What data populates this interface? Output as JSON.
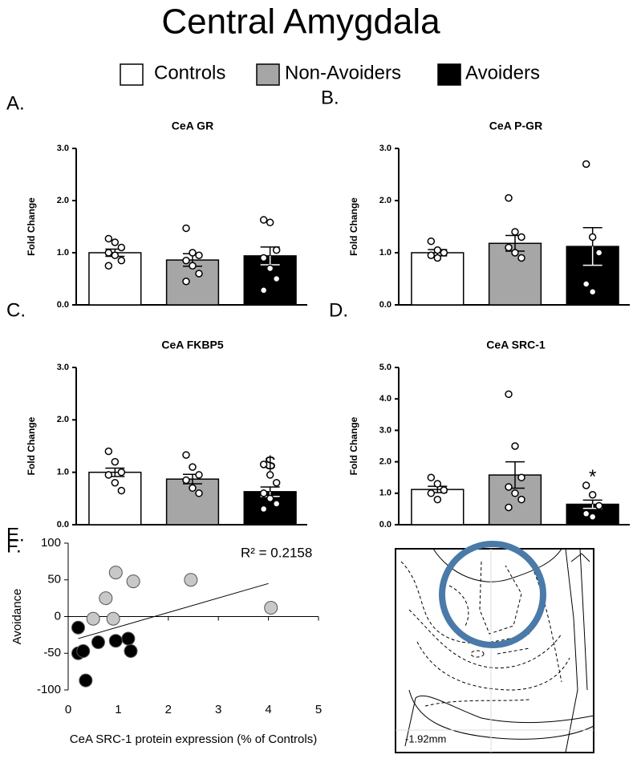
{
  "title": "Central Amygdala",
  "legend": [
    {
      "name": "Controls",
      "color": "#ffffff"
    },
    {
      "name": "Non-Avoiders",
      "color": "#a6a6a6"
    },
    {
      "name": "Avoiders",
      "color": "#000000"
    }
  ],
  "chart_data": [
    {
      "type": "bar",
      "panel": "A.",
      "title": "CeA GR",
      "ylabel": "Fold Change",
      "colors": [
        "#ffffff",
        "#a6a6a6",
        "#000000"
      ],
      "values": [
        1.0,
        0.86,
        0.94
      ],
      "errors": [
        0.07,
        0.12,
        0.17
      ],
      "points": [
        [
          1.27,
          1.2,
          1.1,
          1.0,
          0.95,
          0.85,
          0.75
        ],
        [
          1.47,
          1.0,
          0.95,
          0.85,
          0.75,
          0.6,
          0.45
        ],
        [
          1.63,
          1.58,
          1.05,
          0.9,
          0.7,
          0.5,
          0.28
        ]
      ],
      "annotations": [
        null,
        null,
        null
      ],
      "ylim": [
        0,
        3
      ],
      "yticks": [
        {
          "value": 0,
          "label": "0.0"
        },
        {
          "value": 1,
          "label": "1.0"
        },
        {
          "value": 2,
          "label": "2.0"
        },
        {
          "value": 3,
          "label": "3.0"
        }
      ]
    },
    {
      "type": "bar",
      "panel": "B.",
      "title": "CeA P-GR",
      "ylabel": "Fold Change",
      "colors": [
        "#ffffff",
        "#a6a6a6",
        "#000000"
      ],
      "values": [
        1.0,
        1.18,
        1.12
      ],
      "errors": [
        0.06,
        0.15,
        0.36
      ],
      "points": [
        [
          1.22,
          1.05,
          1.0,
          0.95,
          0.9
        ],
        [
          2.05,
          1.4,
          1.3,
          1.1,
          1.0,
          0.9
        ],
        [
          2.7,
          1.3,
          1.0,
          0.4,
          0.25
        ]
      ],
      "annotations": [
        null,
        null,
        null
      ],
      "ylim": [
        0,
        3
      ],
      "yticks": [
        {
          "value": 0,
          "label": "0.0"
        },
        {
          "value": 1,
          "label": "1.0"
        },
        {
          "value": 2,
          "label": "2.0"
        },
        {
          "value": 3,
          "label": "3.0"
        }
      ]
    },
    {
      "type": "bar",
      "panel": "C.",
      "title": "CeA FKBP5",
      "ylabel": "Fold Change",
      "colors": [
        "#ffffff",
        "#a6a6a6",
        "#000000"
      ],
      "values": [
        1.0,
        0.87,
        0.63
      ],
      "errors": [
        0.08,
        0.09,
        0.09
      ],
      "points": [
        [
          1.4,
          1.2,
          1.0,
          0.95,
          0.8,
          0.65
        ],
        [
          1.33,
          1.1,
          0.95,
          0.85,
          0.7,
          0.6
        ],
        [
          1.15,
          0.95,
          0.8,
          0.6,
          0.5,
          0.4,
          0.3
        ]
      ],
      "annotations": [
        null,
        null,
        "$"
      ],
      "ylim": [
        0,
        3
      ],
      "yticks": [
        {
          "value": 0,
          "label": "0.0"
        },
        {
          "value": 1,
          "label": "1.0"
        },
        {
          "value": 2,
          "label": "2.0"
        },
        {
          "value": 3,
          "label": "3.0"
        }
      ]
    },
    {
      "type": "bar",
      "panel": "D.",
      "title": "CeA  SRC-1",
      "ylabel": "Fold Change",
      "colors": [
        "#ffffff",
        "#a6a6a6",
        "#000000"
      ],
      "values": [
        1.12,
        1.58,
        0.65
      ],
      "errors": [
        0.1,
        0.42,
        0.13
      ],
      "points": [
        [
          1.5,
          1.3,
          1.1,
          1.0,
          0.8
        ],
        [
          4.15,
          2.5,
          1.5,
          1.2,
          1.0,
          0.8,
          0.55
        ],
        [
          1.25,
          0.95,
          0.6,
          0.35,
          0.25
        ]
      ],
      "annotations": [
        null,
        null,
        "*"
      ],
      "ylim": [
        0,
        5
      ],
      "yticks": [
        {
          "value": 0,
          "label": "0.0"
        },
        {
          "value": 1,
          "label": "1.0"
        },
        {
          "value": 2,
          "label": "2.0"
        },
        {
          "value": 3,
          "label": "3.0"
        },
        {
          "value": 4,
          "label": "4.0"
        },
        {
          "value": 5,
          "label": "5.0"
        }
      ]
    },
    {
      "type": "scatter",
      "panel": "E.",
      "xlabel": "CeA SRC-1 protein expression (% of Controls)",
      "ylabel": "Avoidance",
      "annotation": "R² = 0.2158",
      "series": [
        {
          "color": "#c8c8c8",
          "x": [
            0.5,
            0.75,
            0.9,
            0.95,
            1.3,
            2.45,
            4.05
          ],
          "y": [
            -3,
            25,
            -3,
            60,
            48,
            50,
            12
          ]
        },
        {
          "color": "#000000",
          "x": [
            0.2,
            0.2,
            0.3,
            0.35,
            0.6,
            0.95,
            1.2,
            1.25
          ],
          "y": [
            -15,
            -50,
            -47,
            -87,
            -35,
            -33,
            -30,
            -47
          ]
        }
      ],
      "fit": {
        "x": [
          0.2,
          4.0
        ],
        "y": [
          -30,
          45
        ]
      },
      "xlim": [
        0,
        5
      ],
      "xticks": [
        0,
        1,
        2,
        3,
        4,
        5
      ],
      "ylim": [
        -100,
        100
      ],
      "yticks": [
        -100,
        -50,
        0,
        50,
        100
      ]
    }
  ],
  "atlas": {
    "panel": "F.",
    "label": "-1.92mm"
  }
}
